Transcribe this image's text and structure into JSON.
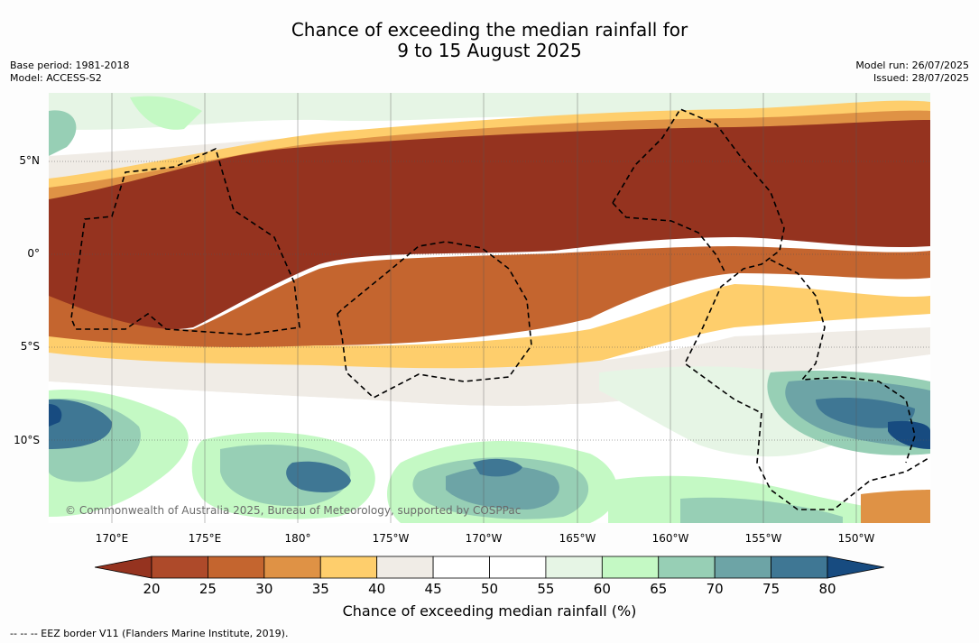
{
  "title_line1": "Chance of exceeding the median rainfall for",
  "title_line2": "9 to 15 August 2025",
  "base_period": "Base period: 1981-2018",
  "model": "Model: ACCESS-S2",
  "model_run": "Model run: 26/07/2025",
  "issued": "Issued: 28/07/2025",
  "lat_labels": [
    "5°N",
    "0°",
    "5°S",
    "10°S"
  ],
  "lon_labels": [
    "170°E",
    "175°E",
    "180°",
    "175°W",
    "170°W",
    "165°W",
    "160°W",
    "155°W",
    "150°W"
  ],
  "copyright": "© Commonwealth of Australia 2025, Bureau of Meteorology, supported by COSPPac",
  "colorbar": {
    "ticks": [
      "20",
      "25",
      "30",
      "35",
      "40",
      "45",
      "50",
      "55",
      "60",
      "65",
      "70",
      "75",
      "80"
    ],
    "colors": [
      "#95331f",
      "#ae4a2a",
      "#c4652f",
      "#df9245",
      "#fece6c",
      "#f0ece6",
      "#ffffff",
      "#ffffff",
      "#e6f5e5",
      "#c4f9c4",
      "#97cfb5",
      "#6da4a6",
      "#3f7794",
      "#174b80"
    ],
    "title": "Chance of exceeding median rainfall (%)"
  },
  "footer": "--  --  -- EEZ border V11 (Flanders Marine Institute, 2019)."
}
